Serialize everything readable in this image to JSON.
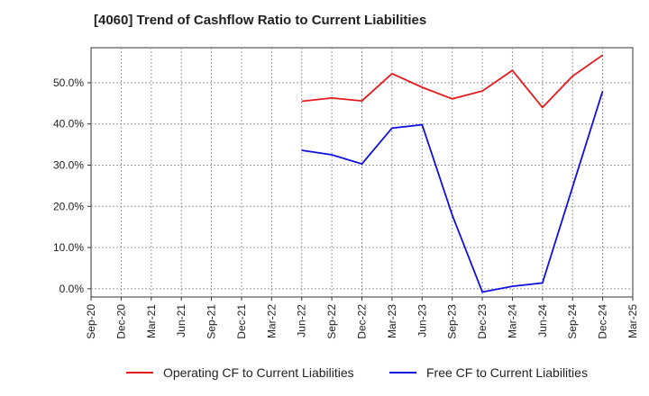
{
  "title": "[4060]  Trend of Cashflow Ratio to Current Liabilities",
  "chart_data": {
    "type": "line",
    "title": "[4060]  Trend of Cashflow Ratio to Current Liabilities",
    "xlabel": "",
    "ylabel": "",
    "x_ticks": [
      "Sep-20",
      "Dec-20",
      "Mar-21",
      "Jun-21",
      "Sep-21",
      "Dec-21",
      "Mar-22",
      "Jun-22",
      "Sep-22",
      "Dec-22",
      "Mar-23",
      "Jun-23",
      "Sep-23",
      "Dec-23",
      "Mar-24",
      "Jun-24",
      "Sep-24",
      "Dec-24",
      "Mar-25"
    ],
    "y_ticks": [
      "0.0%",
      "10.0%",
      "20.0%",
      "30.0%",
      "40.0%",
      "50.0%"
    ],
    "y_tick_values": [
      0,
      10,
      20,
      30,
      40,
      50
    ],
    "ylim": [
      -2,
      58.5
    ],
    "x": [
      "Jun-22",
      "Sep-22",
      "Dec-22",
      "Mar-23",
      "Jun-23",
      "Sep-23",
      "Dec-23",
      "Mar-24",
      "Jun-24",
      "Sep-24",
      "Dec-24"
    ],
    "series": [
      {
        "name": "Operating CF to Current Liabilities",
        "color": "#e41a1c",
        "values": [
          45.5,
          46.3,
          45.6,
          52.2,
          48.9,
          46.1,
          48.0,
          53.0,
          44.0,
          51.6,
          56.7
        ]
      },
      {
        "name": "Free CF to Current Liabilities",
        "color": "#1010e0",
        "values": [
          33.6,
          32.5,
          30.3,
          39.0,
          39.8,
          17.9,
          -0.8,
          0.6,
          1.4,
          24.7,
          48.0
        ]
      }
    ],
    "grid": true,
    "legend_position": "bottom"
  }
}
